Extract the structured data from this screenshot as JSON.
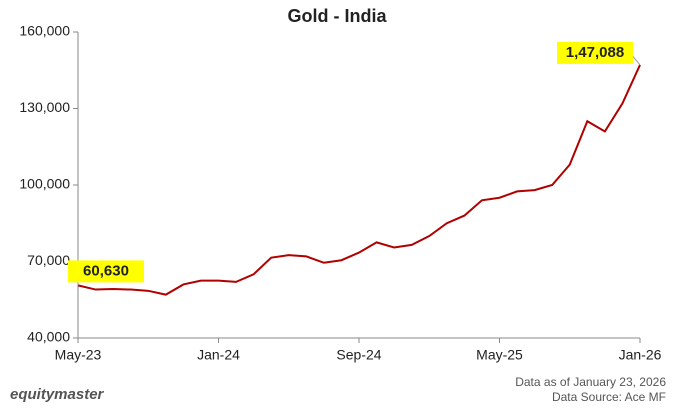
{
  "chart_data": {
    "type": "line",
    "title": "Gold - India",
    "categories": [
      "May-23",
      null,
      null,
      null,
      null,
      null,
      null,
      null,
      "Jan-24",
      null,
      null,
      null,
      null,
      null,
      null,
      null,
      "Sep-24",
      null,
      null,
      null,
      null,
      null,
      null,
      null,
      "May-25",
      null,
      null,
      null,
      null,
      null,
      null,
      null,
      "Jan-26"
    ],
    "series": [
      {
        "name": "Gold - India",
        "color": "#b00000",
        "values": [
          60630,
          59000,
          59200,
          59000,
          58500,
          57000,
          61000,
          62500,
          62500,
          62000,
          65000,
          71500,
          72500,
          72000,
          69500,
          70500,
          73500,
          77500,
          75500,
          76500,
          80000,
          85000,
          88000,
          94000,
          95000,
          97500,
          98000,
          100000,
          108000,
          125000,
          121000,
          132000,
          147088
        ],
        "value_labels": [
          "60,630",
          null,
          null,
          null,
          null,
          null,
          null,
          null,
          null,
          null,
          null,
          null,
          null,
          null,
          null,
          null,
          null,
          null,
          null,
          null,
          null,
          null,
          null,
          null,
          null,
          null,
          null,
          null,
          null,
          null,
          null,
          null,
          "1,47,088"
        ]
      }
    ],
    "ylim": [
      40000,
      160000
    ],
    "yticks": [
      {
        "value": 40000,
        "label": "40,000"
      },
      {
        "value": 70000,
        "label": "70,000"
      },
      {
        "value": 100000,
        "label": "100,000"
      },
      {
        "value": 130000,
        "label": "130,000"
      },
      {
        "value": 160000,
        "label": "160,000"
      }
    ],
    "brand": "equitymaster",
    "note_date": "Data as of January 23, 2026",
    "note_source": "Data Source: Ace MF"
  }
}
